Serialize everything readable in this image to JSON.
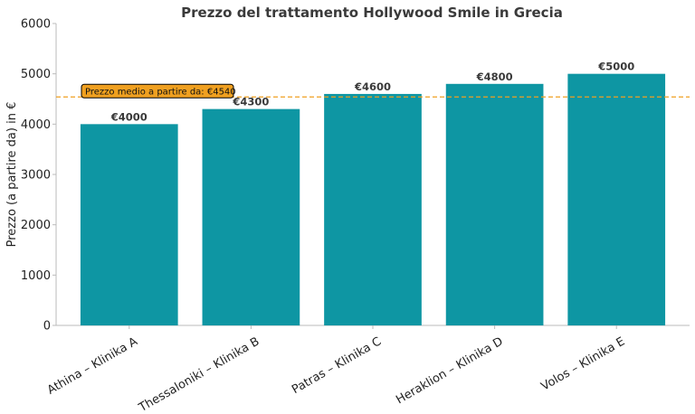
{
  "chart_data": {
    "type": "bar",
    "title": "Prezzo del trattamento Hollywood Smile in Grecia",
    "xlabel": "",
    "ylabel": "Prezzo (a partire da) in €",
    "categories": [
      "Athina – Klinika A",
      "Thessaloniki – Klinika B",
      "Patras – Klinika C",
      "Heraklion – Klinika D",
      "Volos – Klinika E"
    ],
    "values": [
      4000,
      4300,
      4600,
      4800,
      5000
    ],
    "value_labels": [
      "€4000",
      "€4300",
      "€4600",
      "€4800",
      "€5000"
    ],
    "ylim": [
      0,
      6000
    ],
    "yticks": [
      0,
      1000,
      2000,
      3000,
      4000,
      5000,
      6000
    ],
    "ytick_labels": [
      "0",
      "1000",
      "2000",
      "3000",
      "4000",
      "5000",
      "6000"
    ],
    "average_line": {
      "value": 4540,
      "label": "Prezzo medio a partire da: €4540",
      "color": "#f0a020"
    },
    "bar_color": "#0e96a3",
    "grid": false
  }
}
